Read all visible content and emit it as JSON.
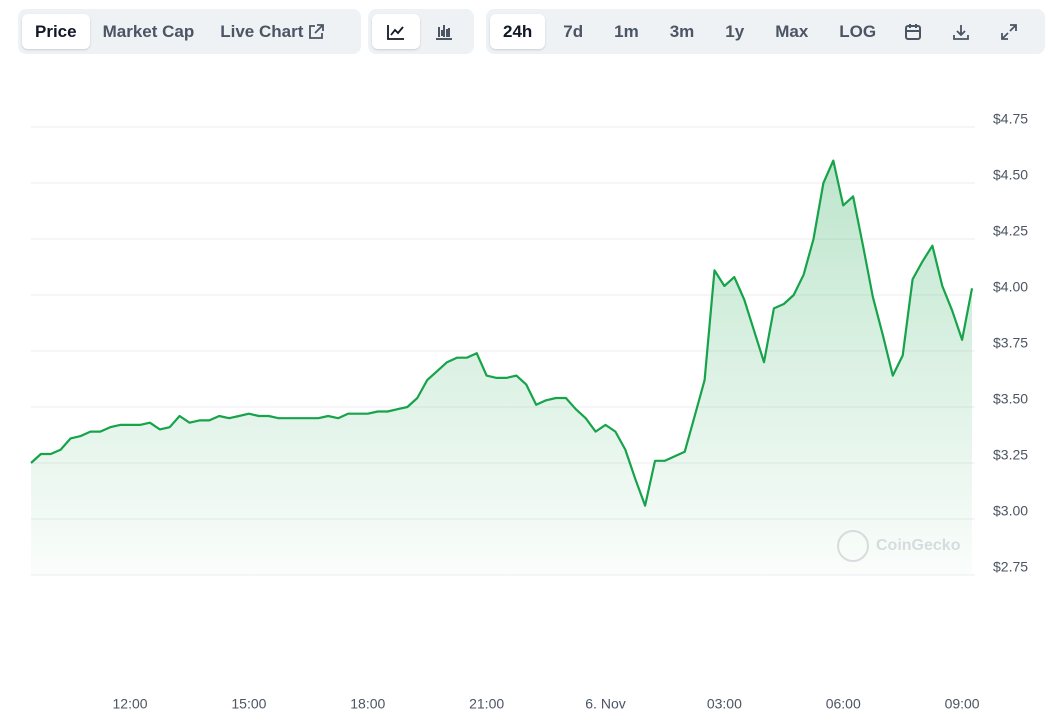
{
  "toolbar": {
    "tabs": [
      "Price",
      "Market Cap",
      "Live Chart"
    ],
    "ranges": [
      "24h",
      "7d",
      "1m",
      "3m",
      "1y",
      "Max",
      "LOG"
    ]
  },
  "watermark": "CoinGecko",
  "chart_data": {
    "type": "line",
    "categories": [
      null,
      null,
      null,
      null,
      null,
      null,
      null,
      null,
      null,
      null,
      "12:00",
      null,
      null,
      null,
      null,
      null,
      null,
      null,
      null,
      null,
      null,
      null,
      "15:00",
      null,
      null,
      null,
      null,
      null,
      null,
      null,
      null,
      null,
      null,
      null,
      "18:00",
      null,
      null,
      null,
      null,
      null,
      null,
      null,
      null,
      null,
      null,
      null,
      "21:00",
      null,
      null,
      null,
      null,
      null,
      null,
      null,
      null,
      null,
      null,
      null,
      "6. Nov",
      null,
      null,
      null,
      null,
      null,
      null,
      null,
      null,
      null,
      null,
      null,
      "03:00",
      null,
      null,
      null,
      null,
      null,
      null,
      null,
      null,
      null,
      null,
      null,
      "06:00",
      null,
      null,
      null,
      null,
      null,
      null,
      null,
      null,
      null,
      null,
      null,
      "09:00",
      null
    ],
    "values": [
      3.25,
      3.29,
      3.29,
      3.31,
      3.36,
      3.37,
      3.39,
      3.39,
      3.41,
      3.42,
      3.42,
      3.42,
      3.43,
      3.4,
      3.41,
      3.46,
      3.43,
      3.44,
      3.44,
      3.46,
      3.45,
      3.46,
      3.47,
      3.46,
      3.46,
      3.45,
      3.45,
      3.45,
      3.45,
      3.45,
      3.46,
      3.45,
      3.47,
      3.47,
      3.47,
      3.48,
      3.48,
      3.49,
      3.5,
      3.54,
      3.62,
      3.66,
      3.7,
      3.72,
      3.72,
      3.74,
      3.64,
      3.63,
      3.63,
      3.64,
      3.6,
      3.51,
      3.53,
      3.54,
      3.54,
      3.49,
      3.45,
      3.39,
      3.42,
      3.39,
      3.31,
      3.18,
      3.06,
      3.26,
      3.26,
      3.28,
      3.3,
      3.46,
      3.62,
      4.11,
      4.04,
      4.08,
      3.98,
      3.84,
      3.7,
      3.94,
      3.96,
      4.0,
      4.09,
      4.25,
      4.5,
      4.6,
      4.4,
      4.44,
      4.22,
      3.99,
      3.82,
      3.64,
      3.73,
      4.07,
      4.15,
      4.22,
      4.04,
      3.93,
      3.8,
      4.03
    ],
    "color": "#16a34a",
    "ylim": [
      2.75,
      4.75
    ],
    "yticks": [
      {
        "value": 2.75,
        "label": "$2.75"
      },
      {
        "value": 3.0,
        "label": "$3.00"
      },
      {
        "value": 3.25,
        "label": "$3.25"
      },
      {
        "value": 3.5,
        "label": "$3.50"
      },
      {
        "value": 3.75,
        "label": "$3.75"
      },
      {
        "value": 4.0,
        "label": "$4.00"
      },
      {
        "value": 4.25,
        "label": "$4.25"
      },
      {
        "value": 4.5,
        "label": "$4.50"
      },
      {
        "value": 4.75,
        "label": "$4.75"
      }
    ],
    "grid": true
  }
}
